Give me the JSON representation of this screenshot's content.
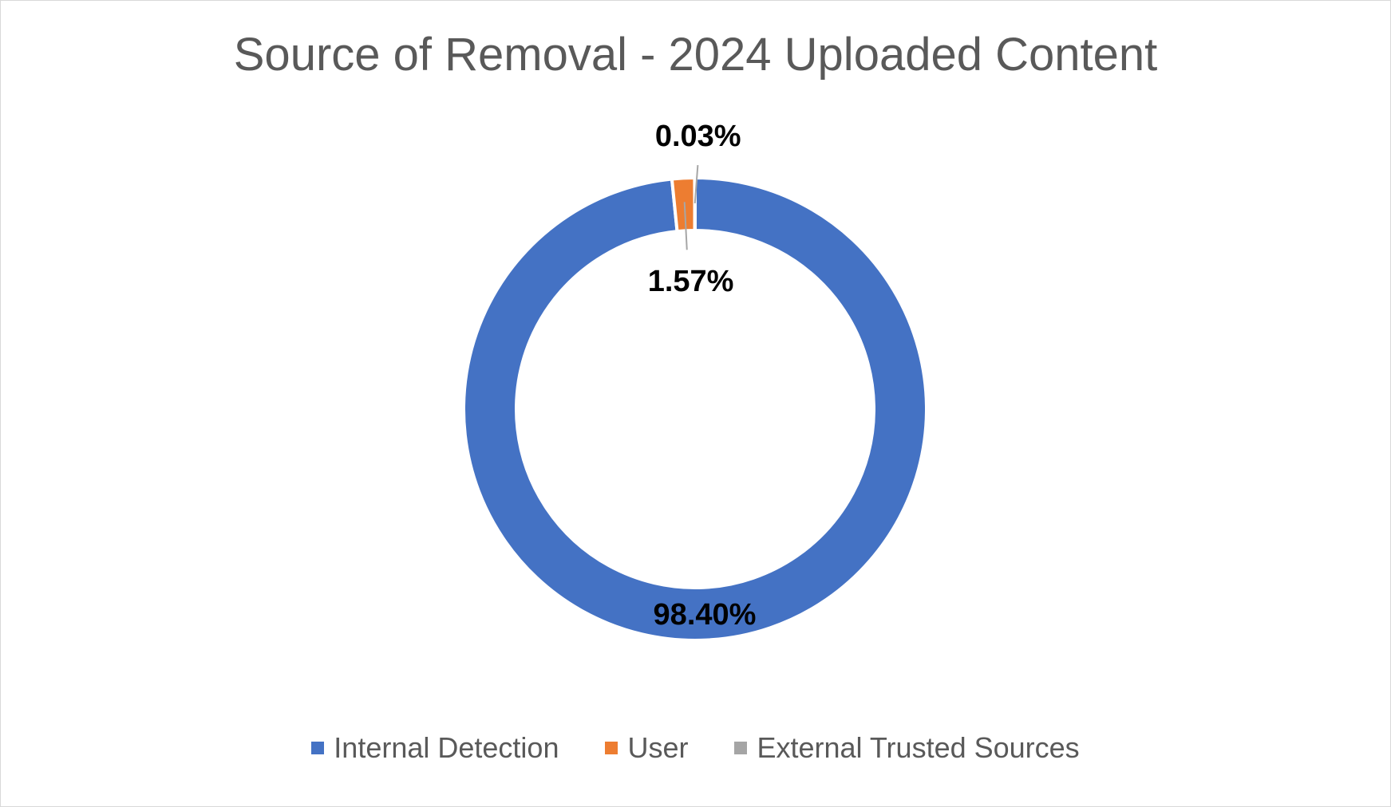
{
  "chart_data": {
    "type": "pie",
    "subtype": "doughnut",
    "title": "Source of Removal - 2024 Uploaded Content",
    "categories": [
      "Internal Detection",
      "User",
      "External Trusted Sources"
    ],
    "values": [
      98.4,
      1.57,
      0.03
    ],
    "data_labels": [
      "98.40%",
      "1.57%",
      "0.03%"
    ],
    "unit": "%",
    "colors": [
      "#4472C4",
      "#ED7D31",
      "#A5A5A5"
    ],
    "legend_placement": "bottom",
    "grid": false
  }
}
